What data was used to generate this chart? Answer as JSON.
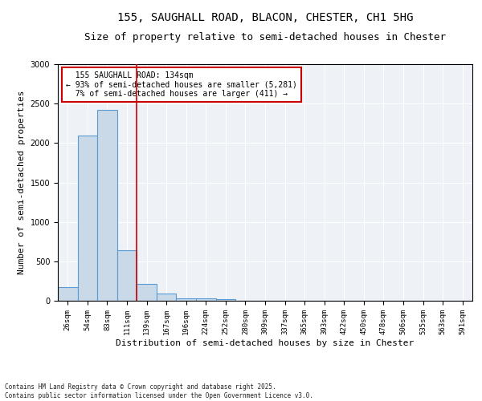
{
  "title": "155, SAUGHALL ROAD, BLACON, CHESTER, CH1 5HG",
  "subtitle": "Size of property relative to semi-detached houses in Chester",
  "xlabel": "Distribution of semi-detached houses by size in Chester",
  "ylabel": "Number of semi-detached properties",
  "bin_labels": [
    "26sqm",
    "54sqm",
    "83sqm",
    "111sqm",
    "139sqm",
    "167sqm",
    "196sqm",
    "224sqm",
    "252sqm",
    "280sqm",
    "309sqm",
    "337sqm",
    "365sqm",
    "393sqm",
    "422sqm",
    "450sqm",
    "478sqm",
    "506sqm",
    "535sqm",
    "563sqm",
    "591sqm"
  ],
  "bar_heights": [
    170,
    2090,
    2420,
    640,
    210,
    90,
    35,
    30,
    20,
    5,
    0,
    0,
    0,
    0,
    0,
    0,
    0,
    0,
    0,
    0,
    0
  ],
  "bar_color": "#c9d9e8",
  "bar_edge_color": "#5b9bd5",
  "property_line_index": 4,
  "property_line_color": "#cc0000",
  "ylim": [
    0,
    3000
  ],
  "annotation_text": "  155 SAUGHALL ROAD: 134sqm\n← 93% of semi-detached houses are smaller (5,281)\n  7% of semi-detached houses are larger (411) →",
  "annotation_box_color": "#cc0000",
  "plot_bg_color": "#eef2f7",
  "footer_text": "Contains HM Land Registry data © Crown copyright and database right 2025.\nContains public sector information licensed under the Open Government Licence v3.0.",
  "title_fontsize": 10,
  "subtitle_fontsize": 9,
  "tick_fontsize": 6.5,
  "ylabel_fontsize": 8,
  "xlabel_fontsize": 8,
  "annotation_fontsize": 7,
  "footer_fontsize": 5.5
}
